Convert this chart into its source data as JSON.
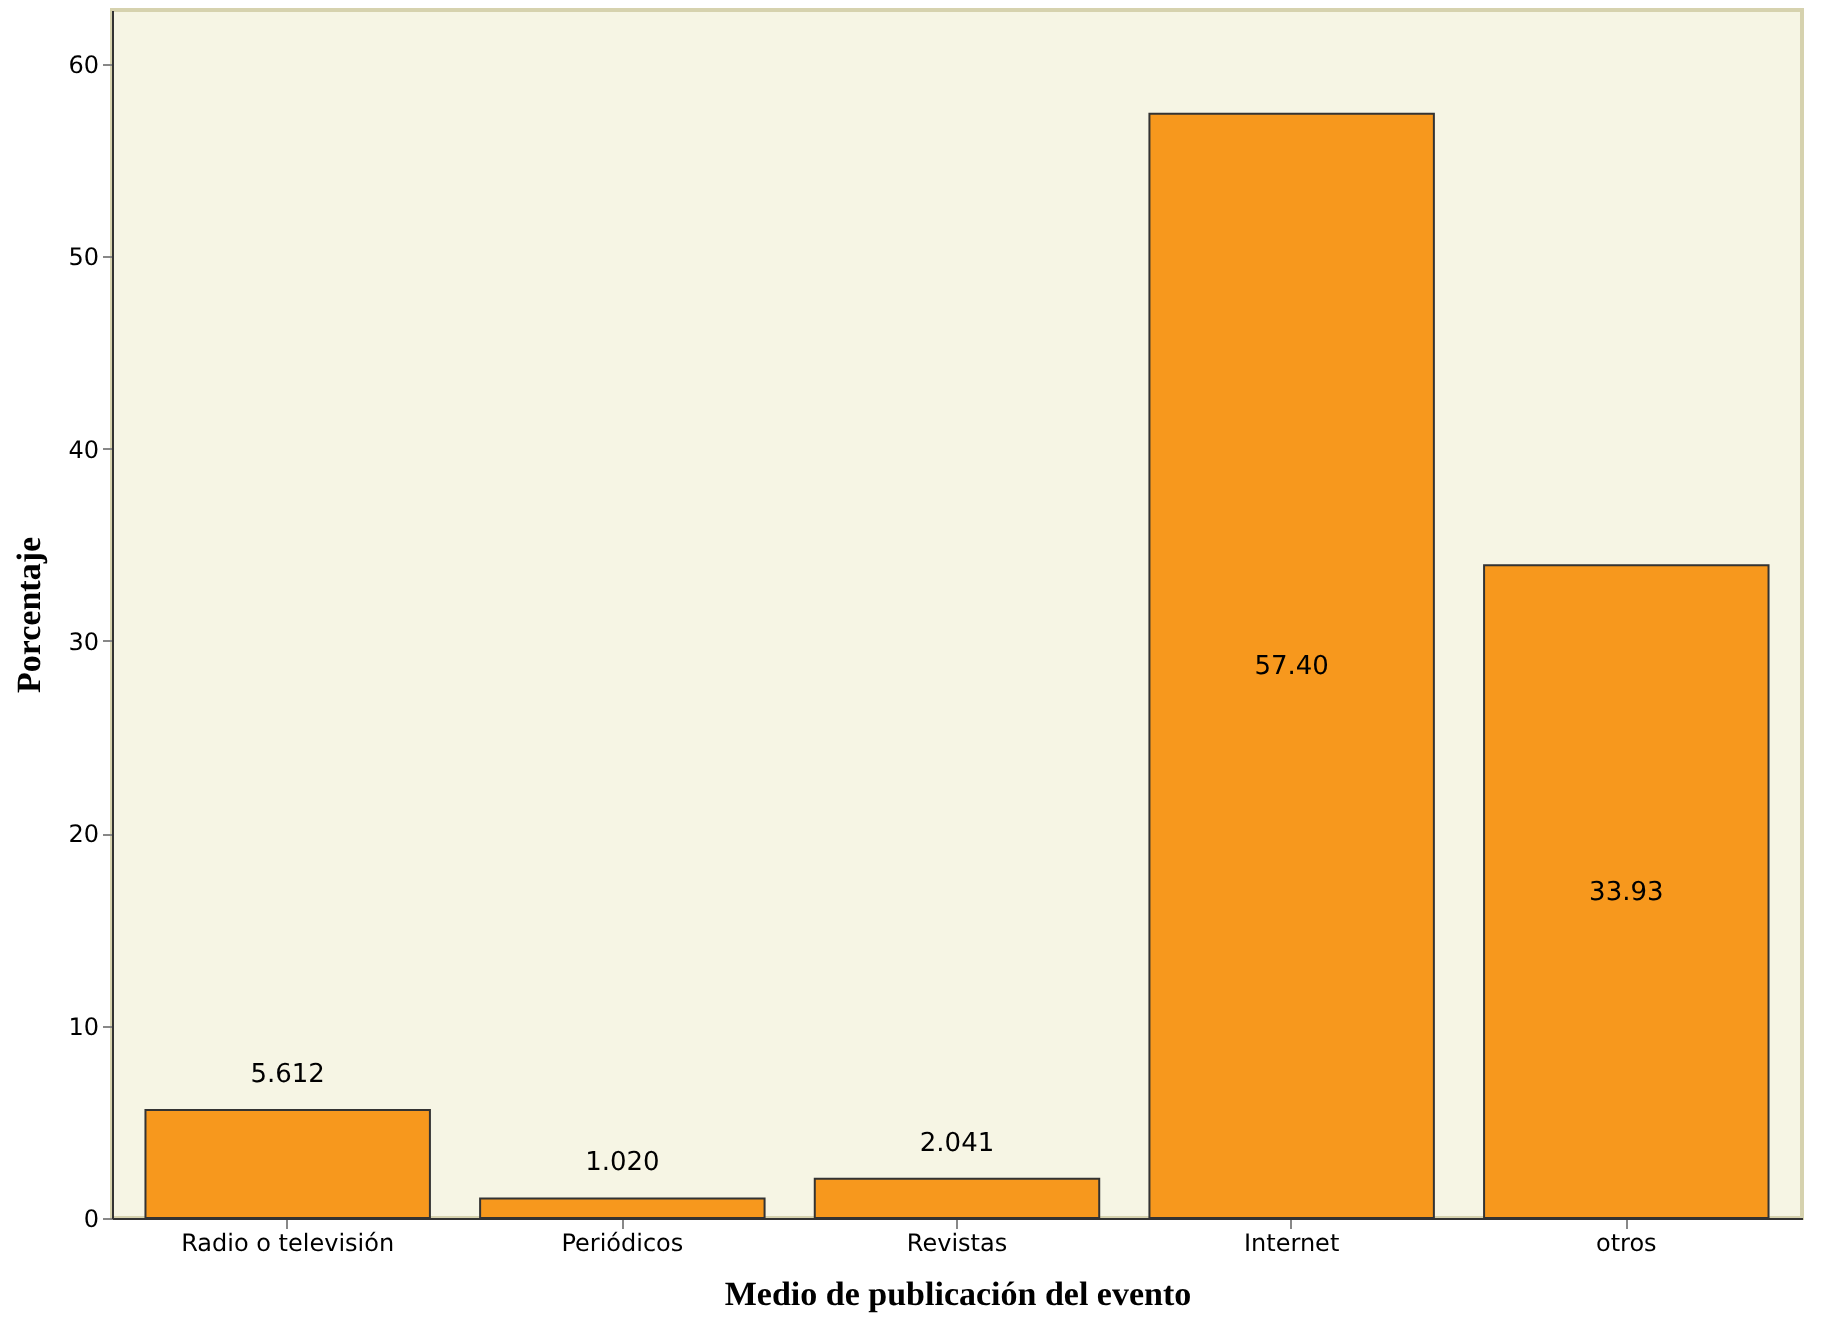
{
  "chart_data": {
    "type": "bar",
    "xlabel": "Medio de publicación del evento",
    "ylabel": "Porcentaje",
    "categories": [
      "Radio o televisión",
      "Periódicos",
      "Revistas",
      "Internet",
      "otros"
    ],
    "values": [
      5.612,
      1.02,
      2.041,
      57.4,
      33.93
    ],
    "value_labels": [
      "5.612",
      "1.020",
      "2.041",
      "57.40",
      "33.93"
    ],
    "color": "#f7981d",
    "ylim": [
      0,
      62.8
    ],
    "yticks": [
      0,
      10,
      20,
      30,
      40,
      50,
      60
    ],
    "grid": false
  }
}
